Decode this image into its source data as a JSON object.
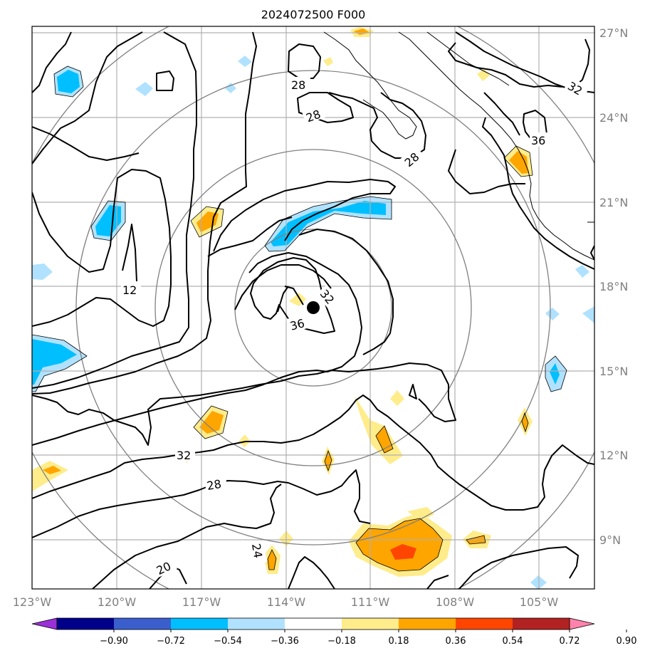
{
  "title": "2024072500 F000",
  "lat_labels": [
    "27°N",
    "24°N",
    "21°N",
    "18°N",
    "15°N",
    "12°N",
    "9°N"
  ],
  "lon_labels": [
    "123°W",
    "120°W",
    "117°W",
    "114°W",
    "111°W",
    "108°W",
    "105°W"
  ],
  "contour_labels": [
    "28",
    "28",
    "28",
    "32",
    "36",
    "32",
    "36",
    "12",
    "32",
    "28",
    "24",
    "20"
  ],
  "colorbar": {
    "ticks": [
      "−0.90",
      "−0.72",
      "−0.54",
      "−0.36",
      "−0.18",
      "0.18",
      "0.36",
      "0.54",
      "0.72",
      "0.90"
    ],
    "colors": [
      "#9b30d9",
      "#00008b",
      "#3a5fcd",
      "#00bfff",
      "#b0e2ff",
      "#ffffff",
      "#ffec8b",
      "#ffa500",
      "#ff4500",
      "#b22222",
      "#ff82ab"
    ]
  },
  "storm_marker": "storm-center"
}
